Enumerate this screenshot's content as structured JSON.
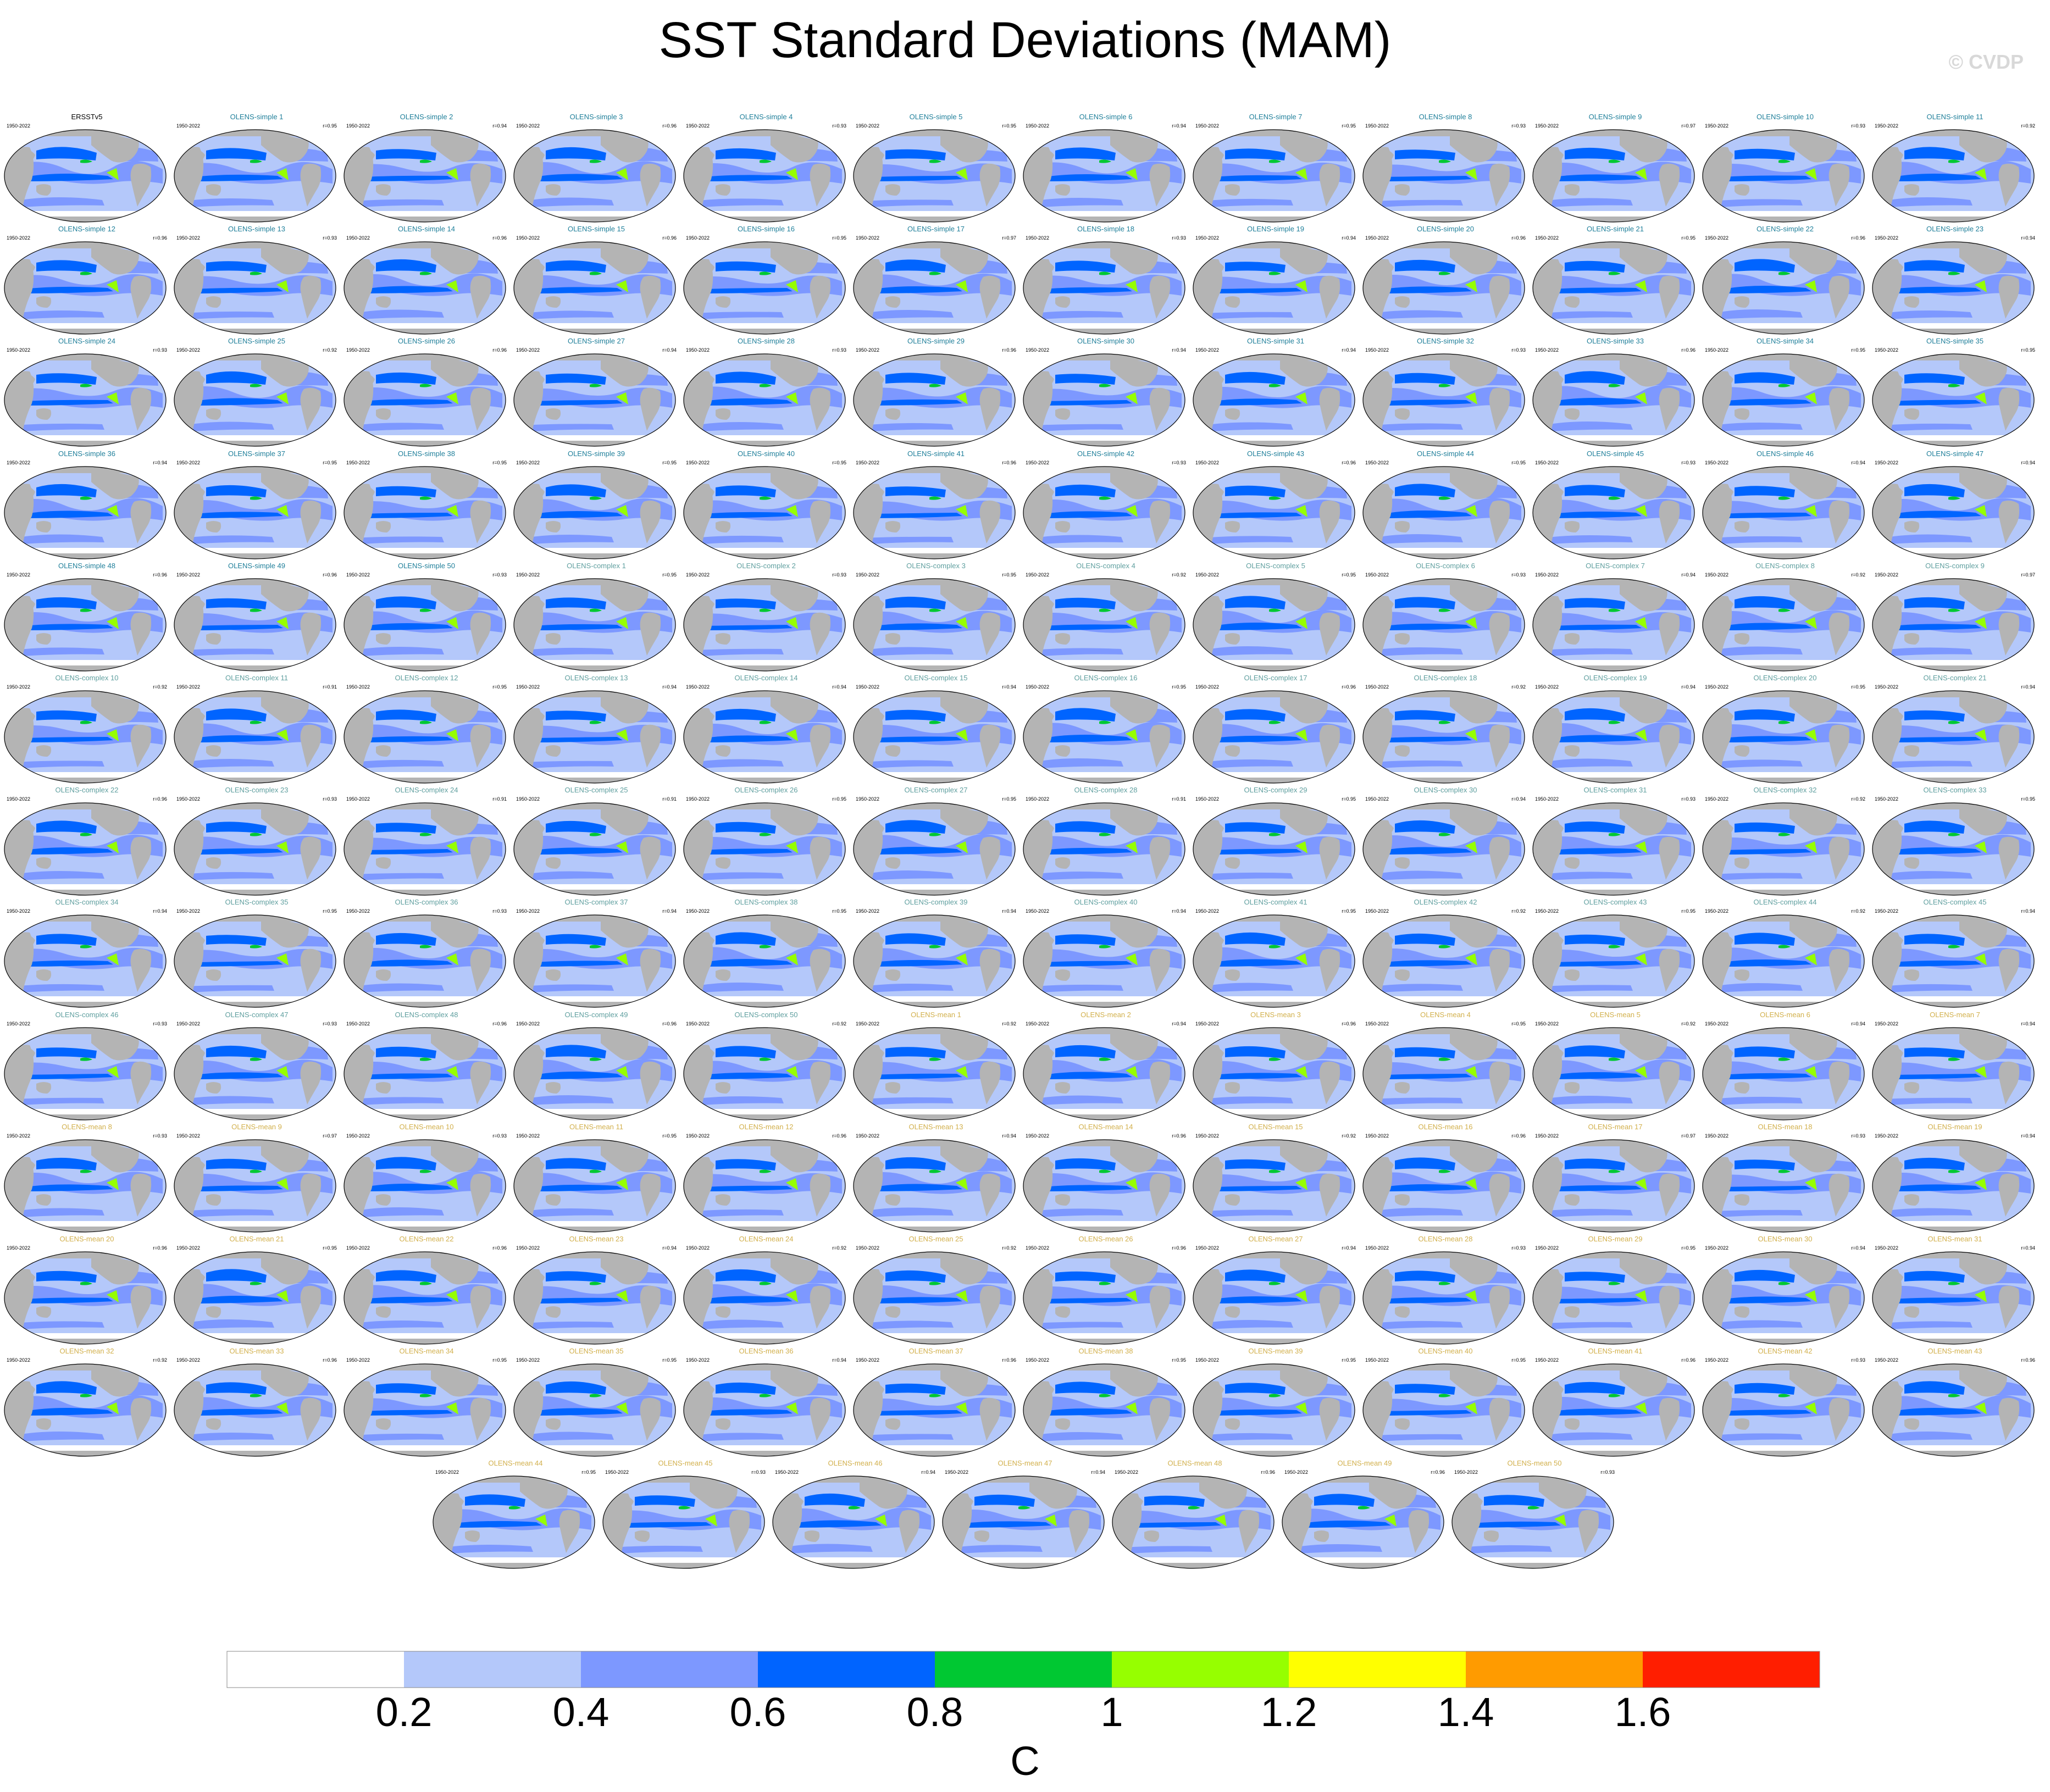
{
  "title": "SST Standard Deviations (MAM)",
  "copyright": "© CVDP",
  "panel_years": "1950-2022",
  "panels": [
    {
      "name": "ERSSTv5",
      "group": "obs",
      "r": ""
    },
    {
      "name": "OLENS-simple 1",
      "group": "simple",
      "r": "r=0.95"
    },
    {
      "name": "OLENS-simple 2",
      "group": "simple",
      "r": "r=0.94"
    },
    {
      "name": "OLENS-simple 3",
      "group": "simple",
      "r": "r=0.96"
    },
    {
      "name": "OLENS-simple 4",
      "group": "simple",
      "r": "r=0.93"
    },
    {
      "name": "OLENS-simple 5",
      "group": "simple",
      "r": "r=0.95"
    },
    {
      "name": "OLENS-simple 6",
      "group": "simple",
      "r": "r=0.94"
    },
    {
      "name": "OLENS-simple 7",
      "group": "simple",
      "r": "r=0.95"
    },
    {
      "name": "OLENS-simple 8",
      "group": "simple",
      "r": "r=0.93"
    },
    {
      "name": "OLENS-simple 9",
      "group": "simple",
      "r": "r=0.97"
    },
    {
      "name": "OLENS-simple 10",
      "group": "simple",
      "r": "r=0.93"
    },
    {
      "name": "OLENS-simple 11",
      "group": "simple",
      "r": "r=0.92"
    },
    {
      "name": "OLENS-simple 12",
      "group": "simple",
      "r": "r=0.96"
    },
    {
      "name": "OLENS-simple 13",
      "group": "simple",
      "r": "r=0.93"
    },
    {
      "name": "OLENS-simple 14",
      "group": "simple",
      "r": "r=0.96"
    },
    {
      "name": "OLENS-simple 15",
      "group": "simple",
      "r": "r=0.96"
    },
    {
      "name": "OLENS-simple 16",
      "group": "simple",
      "r": "r=0.95"
    },
    {
      "name": "OLENS-simple 17",
      "group": "simple",
      "r": "r=0.97"
    },
    {
      "name": "OLENS-simple 18",
      "group": "simple",
      "r": "r=0.93"
    },
    {
      "name": "OLENS-simple 19",
      "group": "simple",
      "r": "r=0.94"
    },
    {
      "name": "OLENS-simple 20",
      "group": "simple",
      "r": "r=0.96"
    },
    {
      "name": "OLENS-simple 21",
      "group": "simple",
      "r": "r=0.95"
    },
    {
      "name": "OLENS-simple 22",
      "group": "simple",
      "r": "r=0.96"
    },
    {
      "name": "OLENS-simple 23",
      "group": "simple",
      "r": "r=0.94"
    },
    {
      "name": "OLENS-simple 24",
      "group": "simple",
      "r": "r=0.93"
    },
    {
      "name": "OLENS-simple 25",
      "group": "simple",
      "r": "r=0.92"
    },
    {
      "name": "OLENS-simple 26",
      "group": "simple",
      "r": "r=0.96"
    },
    {
      "name": "OLENS-simple 27",
      "group": "simple",
      "r": "r=0.94"
    },
    {
      "name": "OLENS-simple 28",
      "group": "simple",
      "r": "r=0.93"
    },
    {
      "name": "OLENS-simple 29",
      "group": "simple",
      "r": "r=0.96"
    },
    {
      "name": "OLENS-simple 30",
      "group": "simple",
      "r": "r=0.94"
    },
    {
      "name": "OLENS-simple 31",
      "group": "simple",
      "r": "r=0.94"
    },
    {
      "name": "OLENS-simple 32",
      "group": "simple",
      "r": "r=0.93"
    },
    {
      "name": "OLENS-simple 33",
      "group": "simple",
      "r": "r=0.96"
    },
    {
      "name": "OLENS-simple 34",
      "group": "simple",
      "r": "r=0.95"
    },
    {
      "name": "OLENS-simple 35",
      "group": "simple",
      "r": "r=0.95"
    },
    {
      "name": "OLENS-simple 36",
      "group": "simple",
      "r": "r=0.94"
    },
    {
      "name": "OLENS-simple 37",
      "group": "simple",
      "r": "r=0.95"
    },
    {
      "name": "OLENS-simple 38",
      "group": "simple",
      "r": "r=0.95"
    },
    {
      "name": "OLENS-simple 39",
      "group": "simple",
      "r": "r=0.95"
    },
    {
      "name": "OLENS-simple 40",
      "group": "simple",
      "r": "r=0.95"
    },
    {
      "name": "OLENS-simple 41",
      "group": "simple",
      "r": "r=0.96"
    },
    {
      "name": "OLENS-simple 42",
      "group": "simple",
      "r": "r=0.93"
    },
    {
      "name": "OLENS-simple 43",
      "group": "simple",
      "r": "r=0.96"
    },
    {
      "name": "OLENS-simple 44",
      "group": "simple",
      "r": "r=0.95"
    },
    {
      "name": "OLENS-simple 45",
      "group": "simple",
      "r": "r=0.93"
    },
    {
      "name": "OLENS-simple 46",
      "group": "simple",
      "r": "r=0.94"
    },
    {
      "name": "OLENS-simple 47",
      "group": "simple",
      "r": "r=0.94"
    },
    {
      "name": "OLENS-simple 48",
      "group": "simple",
      "r": "r=0.96"
    },
    {
      "name": "OLENS-simple 49",
      "group": "simple",
      "r": "r=0.96"
    },
    {
      "name": "OLENS-simple 50",
      "group": "simple",
      "r": "r=0.93"
    },
    {
      "name": "OLENS-complex 1",
      "group": "complex",
      "r": "r=0.95"
    },
    {
      "name": "OLENS-complex 2",
      "group": "complex",
      "r": "r=0.93"
    },
    {
      "name": "OLENS-complex 3",
      "group": "complex",
      "r": "r=0.95"
    },
    {
      "name": "OLENS-complex 4",
      "group": "complex",
      "r": "r=0.92"
    },
    {
      "name": "OLENS-complex 5",
      "group": "complex",
      "r": "r=0.95"
    },
    {
      "name": "OLENS-complex 6",
      "group": "complex",
      "r": "r=0.93"
    },
    {
      "name": "OLENS-complex 7",
      "group": "complex",
      "r": "r=0.94"
    },
    {
      "name": "OLENS-complex 8",
      "group": "complex",
      "r": "r=0.92"
    },
    {
      "name": "OLENS-complex 9",
      "group": "complex",
      "r": "r=0.97"
    },
    {
      "name": "OLENS-complex 10",
      "group": "complex",
      "r": "r=0.92"
    },
    {
      "name": "OLENS-complex 11",
      "group": "complex",
      "r": "r=0.91"
    },
    {
      "name": "OLENS-complex 12",
      "group": "complex",
      "r": "r=0.95"
    },
    {
      "name": "OLENS-complex 13",
      "group": "complex",
      "r": "r=0.94"
    },
    {
      "name": "OLENS-complex 14",
      "group": "complex",
      "r": "r=0.94"
    },
    {
      "name": "OLENS-complex 15",
      "group": "complex",
      "r": "r=0.94"
    },
    {
      "name": "OLENS-complex 16",
      "group": "complex",
      "r": "r=0.95"
    },
    {
      "name": "OLENS-complex 17",
      "group": "complex",
      "r": "r=0.96"
    },
    {
      "name": "OLENS-complex 18",
      "group": "complex",
      "r": "r=0.92"
    },
    {
      "name": "OLENS-complex 19",
      "group": "complex",
      "r": "r=0.94"
    },
    {
      "name": "OLENS-complex 20",
      "group": "complex",
      "r": "r=0.95"
    },
    {
      "name": "OLENS-complex 21",
      "group": "complex",
      "r": "r=0.94"
    },
    {
      "name": "OLENS-complex 22",
      "group": "complex",
      "r": "r=0.96"
    },
    {
      "name": "OLENS-complex 23",
      "group": "complex",
      "r": "r=0.93"
    },
    {
      "name": "OLENS-complex 24",
      "group": "complex",
      "r": "r=0.91"
    },
    {
      "name": "OLENS-complex 25",
      "group": "complex",
      "r": "r=0.91"
    },
    {
      "name": "OLENS-complex 26",
      "group": "complex",
      "r": "r=0.95"
    },
    {
      "name": "OLENS-complex 27",
      "group": "complex",
      "r": "r=0.95"
    },
    {
      "name": "OLENS-complex 28",
      "group": "complex",
      "r": "r=0.91"
    },
    {
      "name": "OLENS-complex 29",
      "group": "complex",
      "r": "r=0.95"
    },
    {
      "name": "OLENS-complex 30",
      "group": "complex",
      "r": "r=0.94"
    },
    {
      "name": "OLENS-complex 31",
      "group": "complex",
      "r": "r=0.93"
    },
    {
      "name": "OLENS-complex 32",
      "group": "complex",
      "r": "r=0.92"
    },
    {
      "name": "OLENS-complex 33",
      "group": "complex",
      "r": "r=0.95"
    },
    {
      "name": "OLENS-complex 34",
      "group": "complex",
      "r": "r=0.94"
    },
    {
      "name": "OLENS-complex 35",
      "group": "complex",
      "r": "r=0.95"
    },
    {
      "name": "OLENS-complex 36",
      "group": "complex",
      "r": "r=0.93"
    },
    {
      "name": "OLENS-complex 37",
      "group": "complex",
      "r": "r=0.94"
    },
    {
      "name": "OLENS-complex 38",
      "group": "complex",
      "r": "r=0.95"
    },
    {
      "name": "OLENS-complex 39",
      "group": "complex",
      "r": "r=0.94"
    },
    {
      "name": "OLENS-complex 40",
      "group": "complex",
      "r": "r=0.94"
    },
    {
      "name": "OLENS-complex 41",
      "group": "complex",
      "r": "r=0.95"
    },
    {
      "name": "OLENS-complex 42",
      "group": "complex",
      "r": "r=0.92"
    },
    {
      "name": "OLENS-complex 43",
      "group": "complex",
      "r": "r=0.95"
    },
    {
      "name": "OLENS-complex 44",
      "group": "complex",
      "r": "r=0.92"
    },
    {
      "name": "OLENS-complex 45",
      "group": "complex",
      "r": "r=0.94"
    },
    {
      "name": "OLENS-complex 46",
      "group": "complex",
      "r": "r=0.93"
    },
    {
      "name": "OLENS-complex 47",
      "group": "complex",
      "r": "r=0.93"
    },
    {
      "name": "OLENS-complex 48",
      "group": "complex",
      "r": "r=0.96"
    },
    {
      "name": "OLENS-complex 49",
      "group": "complex",
      "r": "r=0.96"
    },
    {
      "name": "OLENS-complex 50",
      "group": "complex",
      "r": "r=0.92"
    },
    {
      "name": "OLENS-mean 1",
      "group": "mean",
      "r": "r=0.92"
    },
    {
      "name": "OLENS-mean 2",
      "group": "mean",
      "r": "r=0.94"
    },
    {
      "name": "OLENS-mean 3",
      "group": "mean",
      "r": "r=0.96"
    },
    {
      "name": "OLENS-mean 4",
      "group": "mean",
      "r": "r=0.95"
    },
    {
      "name": "OLENS-mean 5",
      "group": "mean",
      "r": "r=0.92"
    },
    {
      "name": "OLENS-mean 6",
      "group": "mean",
      "r": "r=0.94"
    },
    {
      "name": "OLENS-mean 7",
      "group": "mean",
      "r": "r=0.94"
    },
    {
      "name": "OLENS-mean 8",
      "group": "mean",
      "r": "r=0.93"
    },
    {
      "name": "OLENS-mean 9",
      "group": "mean",
      "r": "r=0.97"
    },
    {
      "name": "OLENS-mean 10",
      "group": "mean",
      "r": "r=0.93"
    },
    {
      "name": "OLENS-mean 11",
      "group": "mean",
      "r": "r=0.95"
    },
    {
      "name": "OLENS-mean 12",
      "group": "mean",
      "r": "r=0.96"
    },
    {
      "name": "OLENS-mean 13",
      "group": "mean",
      "r": "r=0.94"
    },
    {
      "name": "OLENS-mean 14",
      "group": "mean",
      "r": "r=0.96"
    },
    {
      "name": "OLENS-mean 15",
      "group": "mean",
      "r": "r=0.92"
    },
    {
      "name": "OLENS-mean 16",
      "group": "mean",
      "r": "r=0.96"
    },
    {
      "name": "OLENS-mean 17",
      "group": "mean",
      "r": "r=0.97"
    },
    {
      "name": "OLENS-mean 18",
      "group": "mean",
      "r": "r=0.93"
    },
    {
      "name": "OLENS-mean 19",
      "group": "mean",
      "r": "r=0.94"
    },
    {
      "name": "OLENS-mean 20",
      "group": "mean",
      "r": "r=0.96"
    },
    {
      "name": "OLENS-mean 21",
      "group": "mean",
      "r": "r=0.95"
    },
    {
      "name": "OLENS-mean 22",
      "group": "mean",
      "r": "r=0.96"
    },
    {
      "name": "OLENS-mean 23",
      "group": "mean",
      "r": "r=0.94"
    },
    {
      "name": "OLENS-mean 24",
      "group": "mean",
      "r": "r=0.92"
    },
    {
      "name": "OLENS-mean 25",
      "group": "mean",
      "r": "r=0.92"
    },
    {
      "name": "OLENS-mean 26",
      "group": "mean",
      "r": "r=0.96"
    },
    {
      "name": "OLENS-mean 27",
      "group": "mean",
      "r": "r=0.94"
    },
    {
      "name": "OLENS-mean 28",
      "group": "mean",
      "r": "r=0.93"
    },
    {
      "name": "OLENS-mean 29",
      "group": "mean",
      "r": "r=0.95"
    },
    {
      "name": "OLENS-mean 30",
      "group": "mean",
      "r": "r=0.94"
    },
    {
      "name": "OLENS-mean 31",
      "group": "mean",
      "r": "r=0.94"
    },
    {
      "name": "OLENS-mean 32",
      "group": "mean",
      "r": "r=0.92"
    },
    {
      "name": "OLENS-mean 33",
      "group": "mean",
      "r": "r=0.96"
    },
    {
      "name": "OLENS-mean 34",
      "group": "mean",
      "r": "r=0.95"
    },
    {
      "name": "OLENS-mean 35",
      "group": "mean",
      "r": "r=0.95"
    },
    {
      "name": "OLENS-mean 36",
      "group": "mean",
      "r": "r=0.94"
    },
    {
      "name": "OLENS-mean 37",
      "group": "mean",
      "r": "r=0.96"
    },
    {
      "name": "OLENS-mean 38",
      "group": "mean",
      "r": "r=0.95"
    },
    {
      "name": "OLENS-mean 39",
      "group": "mean",
      "r": "r=0.95"
    },
    {
      "name": "OLENS-mean 40",
      "group": "mean",
      "r": "r=0.95"
    },
    {
      "name": "OLENS-mean 41",
      "group": "mean",
      "r": "r=0.96"
    },
    {
      "name": "OLENS-mean 42",
      "group": "mean",
      "r": "r=0.93"
    },
    {
      "name": "OLENS-mean 43",
      "group": "mean",
      "r": "r=0.96"
    },
    {
      "name": "OLENS-mean 44",
      "group": "mean",
      "r": "r=0.95"
    },
    {
      "name": "OLENS-mean 45",
      "group": "mean",
      "r": "r=0.93"
    },
    {
      "name": "OLENS-mean 46",
      "group": "mean",
      "r": "r=0.94"
    },
    {
      "name": "OLENS-mean 47",
      "group": "mean",
      "r": "r=0.94"
    },
    {
      "name": "OLENS-mean 48",
      "group": "mean",
      "r": "r=0.96"
    },
    {
      "name": "OLENS-mean 49",
      "group": "mean",
      "r": "r=0.96"
    },
    {
      "name": "OLENS-mean 50",
      "group": "mean",
      "r": "r=0.93"
    }
  ],
  "colors": {
    "land": "#b4b4b4",
    "title_obs": "#000000",
    "title_simple": "#1f7f9a",
    "title_complex": "#5f9f9f",
    "title_mean": "#d2b04c"
  },
  "chart_data": {
    "type": "heatmap",
    "title": "SST Standard Deviations (MAM)",
    "units": "C",
    "colorbar": {
      "levels": [
        0.2,
        0.4,
        0.6,
        0.8,
        1,
        1.2,
        1.4,
        1.6
      ],
      "tick_labels": [
        "0.2",
        "0.4",
        "0.6",
        "0.8",
        "1",
        "1.2",
        "1.4",
        "1.6"
      ],
      "colors": [
        "#ffffff",
        "#b4c8fa",
        "#7d98ff",
        "#0064ff",
        "#00c832",
        "#96ff00",
        "#ffff00",
        "#ff9b00",
        "#ff1e00"
      ]
    }
  }
}
